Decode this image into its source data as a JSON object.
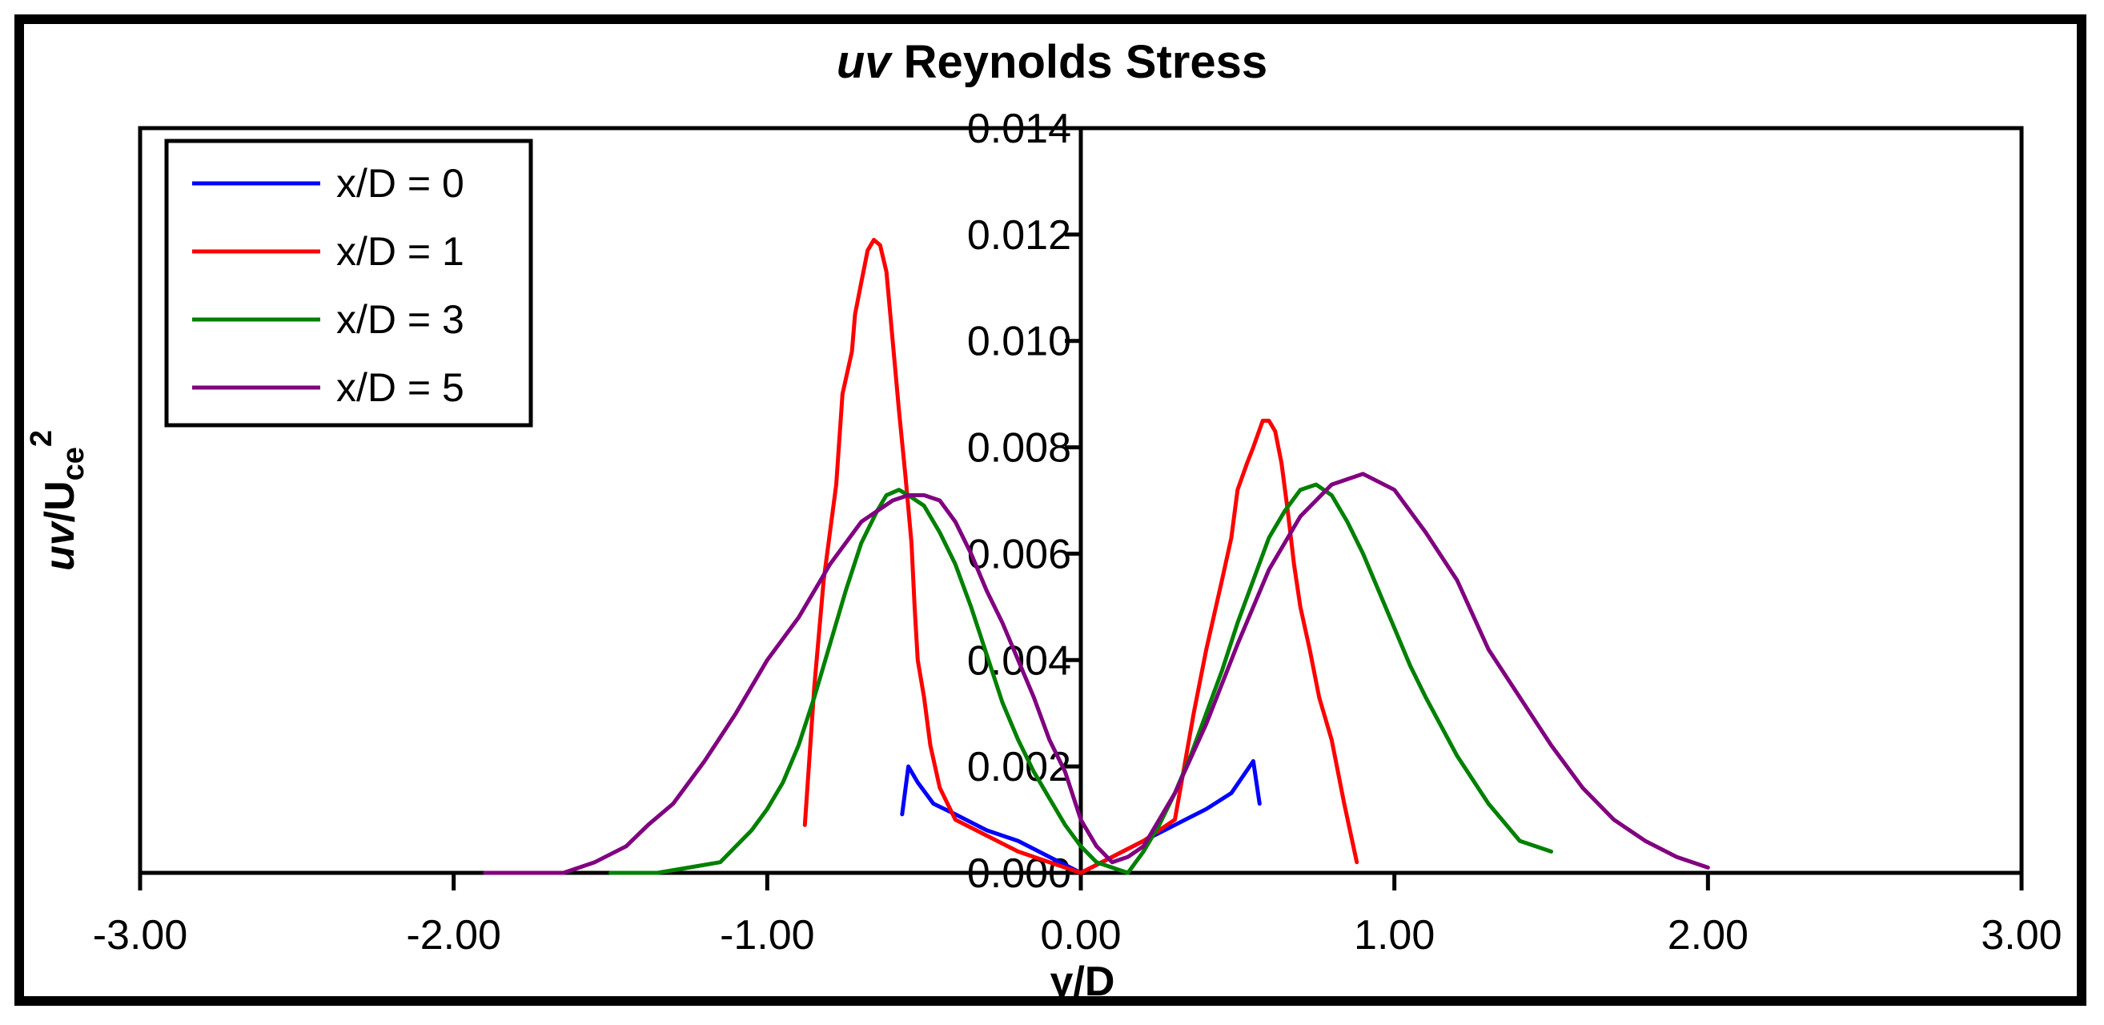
{
  "chart_data": {
    "type": "line",
    "title_italic": "uv",
    "title_rest": " Reynolds Stress",
    "xlabel": "y/D",
    "ylabel_italic": "uv",
    "ylabel_main": "/U",
    "ylabel_sub": "ce",
    "ylabel_sup": "2",
    "xlim": [
      -3.0,
      3.0
    ],
    "ylim": [
      0.0,
      0.014
    ],
    "x_ticks": [
      -3.0,
      -2.0,
      -1.0,
      0.0,
      1.0,
      2.0,
      3.0
    ],
    "x_tick_labels": [
      "-3.00",
      "-2.00",
      "-1.00",
      "0.00",
      "1.00",
      "2.00",
      "3.00"
    ],
    "y_ticks": [
      0.0,
      0.002,
      0.004,
      0.006,
      0.008,
      0.01,
      0.012,
      0.014
    ],
    "y_tick_labels": [
      "0.000",
      "0.002",
      "0.004",
      "0.006",
      "0.008",
      "0.010",
      "0.012",
      "0.014"
    ],
    "grid": false,
    "legend_position": "top-left",
    "series": [
      {
        "name": "x/D = 0",
        "color": "#0000ff",
        "x": [
          -0.57,
          -0.55,
          -0.52,
          -0.47,
          -0.4,
          -0.3,
          -0.2,
          -0.1,
          0.0,
          0.1,
          0.2,
          0.3,
          0.4,
          0.48,
          0.55,
          0.57
        ],
        "y": [
          0.0011,
          0.002,
          0.0017,
          0.0013,
          0.0011,
          0.0008,
          0.0006,
          0.0003,
          0.0,
          0.0003,
          0.0006,
          0.0009,
          0.0012,
          0.0015,
          0.0021,
          0.0013
        ]
      },
      {
        "name": "x/D = 1",
        "color": "#ff0000",
        "x": [
          -0.88,
          -0.85,
          -0.82,
          -0.78,
          -0.76,
          -0.73,
          -0.72,
          -0.7,
          -0.68,
          -0.66,
          -0.64,
          -0.62,
          -0.6,
          -0.58,
          -0.56,
          -0.54,
          -0.53,
          -0.52,
          -0.5,
          -0.48,
          -0.45,
          -0.4,
          -0.3,
          -0.2,
          -0.1,
          0.0,
          0.1,
          0.2,
          0.3,
          0.33,
          0.36,
          0.4,
          0.45,
          0.48,
          0.5,
          0.53,
          0.55,
          0.58,
          0.6,
          0.62,
          0.64,
          0.66,
          0.68,
          0.7,
          0.73,
          0.76,
          0.8,
          0.84,
          0.88
        ],
        "y": [
          0.0009,
          0.0035,
          0.0055,
          0.0073,
          0.009,
          0.0098,
          0.0105,
          0.0111,
          0.0117,
          0.0119,
          0.0118,
          0.0113,
          0.01,
          0.0087,
          0.0075,
          0.0062,
          0.005,
          0.004,
          0.0033,
          0.0024,
          0.0016,
          0.001,
          0.0007,
          0.0004,
          0.0002,
          0.0,
          0.0003,
          0.0006,
          0.001,
          0.002,
          0.003,
          0.0042,
          0.0055,
          0.0063,
          0.0072,
          0.0077,
          0.008,
          0.0085,
          0.0085,
          0.0083,
          0.0077,
          0.0068,
          0.0058,
          0.005,
          0.0042,
          0.0033,
          0.0025,
          0.0013,
          0.0002
        ]
      },
      {
        "name": "x/D = 3",
        "color": "#008000",
        "x": [
          -1.5,
          -1.35,
          -1.25,
          -1.15,
          -1.1,
          -1.05,
          -1.0,
          -0.95,
          -0.9,
          -0.85,
          -0.8,
          -0.75,
          -0.7,
          -0.65,
          -0.62,
          -0.58,
          -0.55,
          -0.5,
          -0.45,
          -0.4,
          -0.35,
          -0.3,
          -0.25,
          -0.2,
          -0.15,
          -0.1,
          -0.05,
          0.0,
          0.05,
          0.1,
          0.15,
          0.2,
          0.25,
          0.3,
          0.35,
          0.4,
          0.45,
          0.5,
          0.55,
          0.6,
          0.65,
          0.7,
          0.75,
          0.8,
          0.85,
          0.9,
          0.95,
          1.0,
          1.05,
          1.1,
          1.2,
          1.3,
          1.4,
          1.5
        ],
        "y": [
          0.0,
          0.0,
          0.0001,
          0.0002,
          0.0005,
          0.0008,
          0.0012,
          0.0017,
          0.0024,
          0.0033,
          0.0043,
          0.0053,
          0.0062,
          0.0068,
          0.0071,
          0.0072,
          0.0071,
          0.0069,
          0.0064,
          0.0058,
          0.005,
          0.0041,
          0.0032,
          0.0025,
          0.0019,
          0.0014,
          0.0009,
          0.0005,
          0.0002,
          0.0001,
          0.0,
          0.0004,
          0.0009,
          0.0015,
          0.0022,
          0.003,
          0.0038,
          0.0047,
          0.0055,
          0.0063,
          0.0068,
          0.0072,
          0.0073,
          0.0071,
          0.0066,
          0.006,
          0.0053,
          0.0046,
          0.0039,
          0.0033,
          0.0022,
          0.0013,
          0.0006,
          0.0004
        ]
      },
      {
        "name": "x/D = 5",
        "color": "#800080",
        "x": [
          -1.9,
          -1.8,
          -1.65,
          -1.55,
          -1.45,
          -1.38,
          -1.3,
          -1.2,
          -1.1,
          -1.0,
          -0.9,
          -0.8,
          -0.7,
          -0.6,
          -0.55,
          -0.5,
          -0.45,
          -0.4,
          -0.35,
          -0.3,
          -0.25,
          -0.2,
          -0.15,
          -0.1,
          -0.05,
          0.0,
          0.05,
          0.1,
          0.15,
          0.2,
          0.25,
          0.3,
          0.4,
          0.5,
          0.6,
          0.7,
          0.8,
          0.9,
          1.0,
          1.1,
          1.2,
          1.3,
          1.4,
          1.5,
          1.6,
          1.7,
          1.8,
          1.9,
          2.0
        ],
        "y": [
          0.0,
          0.0,
          0.0,
          0.0002,
          0.0005,
          0.0009,
          0.0013,
          0.0021,
          0.003,
          0.004,
          0.0048,
          0.0058,
          0.0066,
          0.007,
          0.0071,
          0.0071,
          0.007,
          0.0066,
          0.006,
          0.0053,
          0.0047,
          0.004,
          0.0033,
          0.0025,
          0.0019,
          0.001,
          0.0005,
          0.0002,
          0.0003,
          0.0005,
          0.001,
          0.0015,
          0.0028,
          0.0043,
          0.0057,
          0.0067,
          0.0073,
          0.0075,
          0.0072,
          0.0064,
          0.0055,
          0.0042,
          0.0033,
          0.0024,
          0.0016,
          0.001,
          0.0006,
          0.0003,
          0.0001
        ]
      }
    ]
  }
}
